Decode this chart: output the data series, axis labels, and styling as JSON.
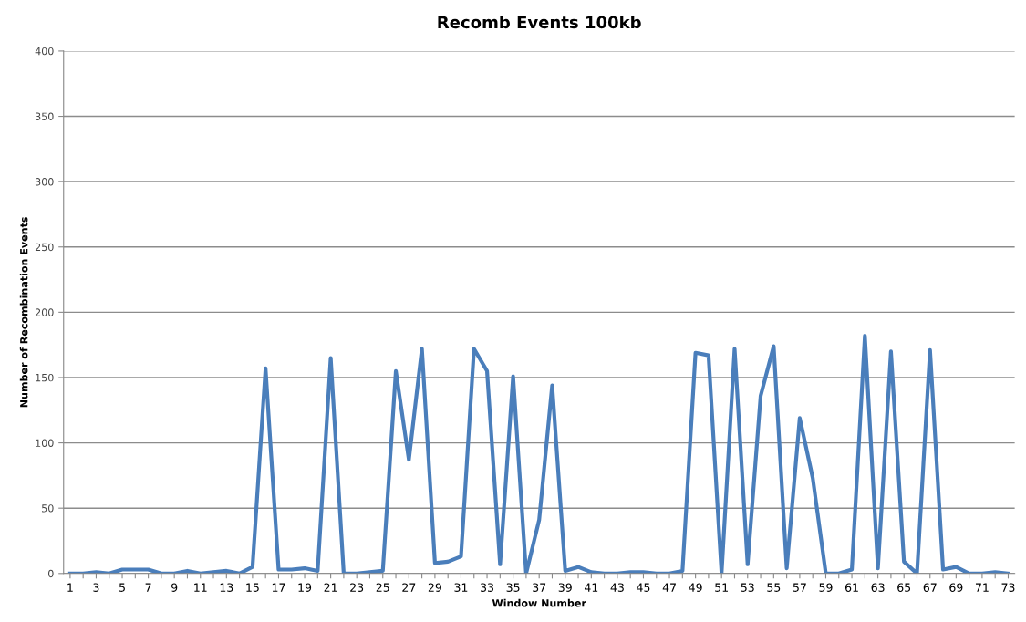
{
  "chart_data": {
    "type": "line",
    "title": "Recomb Events 100kb",
    "xlabel": "Window Number",
    "ylabel": "Number of Recombination Events",
    "categories": [
      "1",
      null,
      "3",
      null,
      "5",
      null,
      "7",
      null,
      "9",
      null,
      "11",
      null,
      "13",
      null,
      "15",
      null,
      "17",
      null,
      "19",
      null,
      "21",
      null,
      "23",
      null,
      "25",
      null,
      "27",
      null,
      "29",
      null,
      "31",
      null,
      "33",
      null,
      "35",
      null,
      "37",
      null,
      "39",
      null,
      "41",
      null,
      "43",
      null,
      "45",
      null,
      "47",
      null,
      "49",
      null,
      "51",
      null,
      "53",
      null,
      "55",
      null,
      "57",
      null,
      "59",
      null,
      "61",
      null,
      "63",
      null,
      "65",
      null,
      "67",
      null,
      "69",
      null,
      "71",
      null,
      "73"
    ],
    "series": [
      {
        "color": "#4a7ebb",
        "values": [
          0,
          0,
          1,
          0,
          3,
          3,
          3,
          0,
          0,
          2,
          0,
          1,
          2,
          0,
          5,
          157,
          3,
          3,
          4,
          2,
          165,
          0,
          0,
          1,
          2,
          155,
          87,
          172,
          8,
          9,
          13,
          172,
          155,
          7,
          151,
          0,
          41,
          144,
          2,
          5,
          1,
          0,
          0,
          1,
          1,
          0,
          0,
          2,
          169,
          167,
          0,
          172,
          7,
          136,
          174,
          4,
          119,
          73,
          0,
          0,
          3,
          182,
          4,
          170,
          9,
          0,
          171,
          3,
          5,
          0,
          0,
          1,
          0
        ]
      }
    ],
    "ylim": [
      0,
      400
    ],
    "yticks": [
      0,
      50,
      100,
      150,
      200,
      250,
      300,
      350,
      400
    ],
    "grid": "y",
    "legend": false,
    "marker": "none",
    "line_style": "solid"
  }
}
